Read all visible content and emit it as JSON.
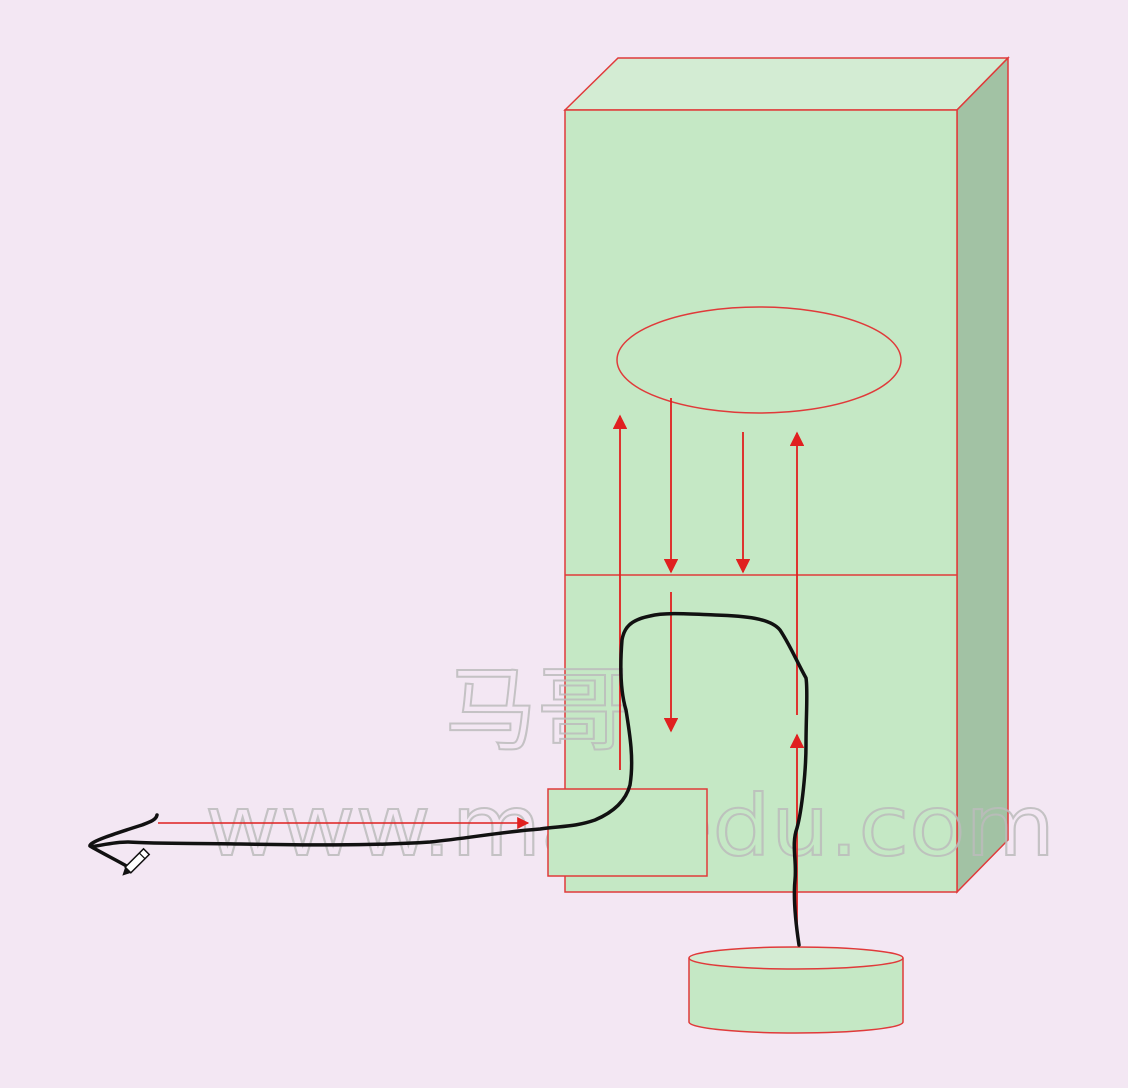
{
  "watermark": {
    "line1": "马哥",
    "line2": "www.magedu.com"
  },
  "colors": {
    "background": "#f3e7f3",
    "box_face": "#c5e8c5",
    "box_top": "#d3ecd3",
    "box_side": "#a2c2a4",
    "outline": "#e03a3a",
    "arrow": "#e02020",
    "hand_drawn_path": "#111111",
    "watermark": "#c8c8c8"
  },
  "icons": {
    "pencil": "pencil-cursor-icon"
  }
}
